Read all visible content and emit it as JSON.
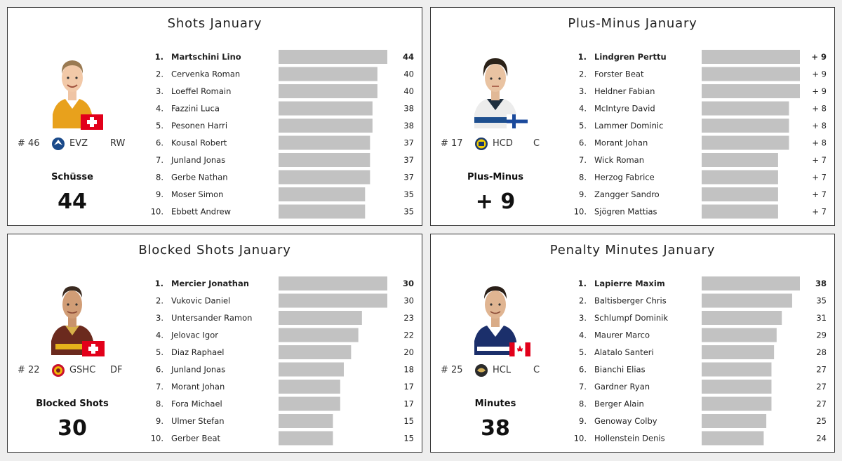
{
  "colors": {
    "bar": "#c2c2c2",
    "border": "#333333",
    "background": "#eeeeee",
    "panel": "#ffffff",
    "flag_red": "#e2001a",
    "flag_blue": "#1b4a9c"
  },
  "panels": [
    {
      "title": "Shots January",
      "player": {
        "number": "# 46",
        "team": "EVZ",
        "position": "RW",
        "team_logo_icon": "evz-logo-icon",
        "flag_icon": "swiss-flag-icon",
        "photo_icon": "player-photo-icon"
      },
      "stat_label": "Schüsse",
      "stat_value": "44"
    },
    {
      "title": "Plus-Minus January",
      "player": {
        "number": "# 17",
        "team": "HCD",
        "position": "C",
        "team_logo_icon": "hcd-logo-icon",
        "flag_icon": "finnish-flag-icon",
        "photo_icon": "player-photo-icon"
      },
      "stat_label": "Plus-Minus",
      "stat_value": "+ 9"
    },
    {
      "title": "Blocked Shots January",
      "player": {
        "number": "# 22",
        "team": "GSHC",
        "position": "DF",
        "team_logo_icon": "gshc-logo-icon",
        "flag_icon": "swiss-flag-icon",
        "photo_icon": "player-photo-icon"
      },
      "stat_label": "Blocked Shots",
      "stat_value": "30"
    },
    {
      "title": "Penalty Minutes January",
      "player": {
        "number": "# 25",
        "team": "HCL",
        "position": "C",
        "team_logo_icon": "hcl-logo-icon",
        "flag_icon": "canadian-flag-icon",
        "photo_icon": "player-photo-icon"
      },
      "stat_label": "Minutes",
      "stat_value": "38"
    }
  ],
  "chart_data": [
    {
      "type": "bar",
      "title": "Shots January",
      "orientation": "horizontal",
      "ranks": [
        "1.",
        "2.",
        "3.",
        "4.",
        "5.",
        "6.",
        "7.",
        "8.",
        "9.",
        "10."
      ],
      "categories": [
        "Martschini Lino",
        "Cervenka Roman",
        "Loeffel Romain",
        "Fazzini Luca",
        "Pesonen Harri",
        "Kousal Robert",
        "Junland Jonas",
        "Gerbe Nathan",
        "Moser Simon",
        "Ebbett Andrew"
      ],
      "values": [
        44,
        40,
        40,
        38,
        38,
        37,
        37,
        37,
        35,
        35
      ],
      "value_labels": [
        "44",
        "40",
        "40",
        "38",
        "38",
        "37",
        "37",
        "37",
        "35",
        "35"
      ],
      "xlim": [
        0,
        44
      ],
      "grid": false
    },
    {
      "type": "bar",
      "title": "Plus-Minus January",
      "orientation": "horizontal",
      "ranks": [
        "1.",
        "2.",
        "3.",
        "4.",
        "5.",
        "6.",
        "7.",
        "8.",
        "9.",
        "10."
      ],
      "categories": [
        "Lindgren Perttu",
        "Forster Beat",
        "Heldner Fabian",
        "McIntyre David",
        "Lammer Dominic",
        "Morant Johan",
        "Wick Roman",
        "Herzog Fabrice",
        "Zangger Sandro",
        "Sjögren Mattias"
      ],
      "values": [
        9,
        9,
        9,
        8,
        8,
        8,
        7,
        7,
        7,
        7
      ],
      "value_labels": [
        "+ 9",
        "+ 9",
        "+ 9",
        "+ 8",
        "+ 8",
        "+ 8",
        "+ 7",
        "+ 7",
        "+ 7",
        "+ 7"
      ],
      "xlim": [
        0,
        9
      ],
      "grid": false
    },
    {
      "type": "bar",
      "title": "Blocked Shots January",
      "orientation": "horizontal",
      "ranks": [
        "1.",
        "2.",
        "3.",
        "4.",
        "5.",
        "6.",
        "7.",
        "8.",
        "9.",
        "10."
      ],
      "categories": [
        "Mercier Jonathan",
        "Vukovic Daniel",
        "Untersander Ramon",
        "Jelovac Igor",
        "Diaz Raphael",
        "Junland Jonas",
        "Morant Johan",
        "Fora Michael",
        "Ulmer Stefan",
        "Gerber Beat"
      ],
      "values": [
        30,
        30,
        23,
        22,
        20,
        18,
        17,
        17,
        15,
        15
      ],
      "value_labels": [
        "30",
        "30",
        "23",
        "22",
        "20",
        "18",
        "17",
        "17",
        "15",
        "15"
      ],
      "xlim": [
        0,
        30
      ],
      "grid": false
    },
    {
      "type": "bar",
      "title": "Penalty Minutes January",
      "orientation": "horizontal",
      "ranks": [
        "1.",
        "2.",
        "3.",
        "4.",
        "5.",
        "6.",
        "7.",
        "8.",
        "9.",
        "10."
      ],
      "categories": [
        "Lapierre Maxim",
        "Baltisberger Chris",
        "Schlumpf Dominik",
        "Maurer Marco",
        "Alatalo Santeri",
        "Bianchi Elias",
        "Gardner Ryan",
        "Berger Alain",
        "Genoway Colby",
        "Hollenstein Denis"
      ],
      "values": [
        38,
        35,
        31,
        29,
        28,
        27,
        27,
        27,
        25,
        24
      ],
      "value_labels": [
        "38",
        "35",
        "31",
        "29",
        "28",
        "27",
        "27",
        "27",
        "25",
        "24"
      ],
      "xlim": [
        0,
        38
      ],
      "grid": false
    }
  ]
}
